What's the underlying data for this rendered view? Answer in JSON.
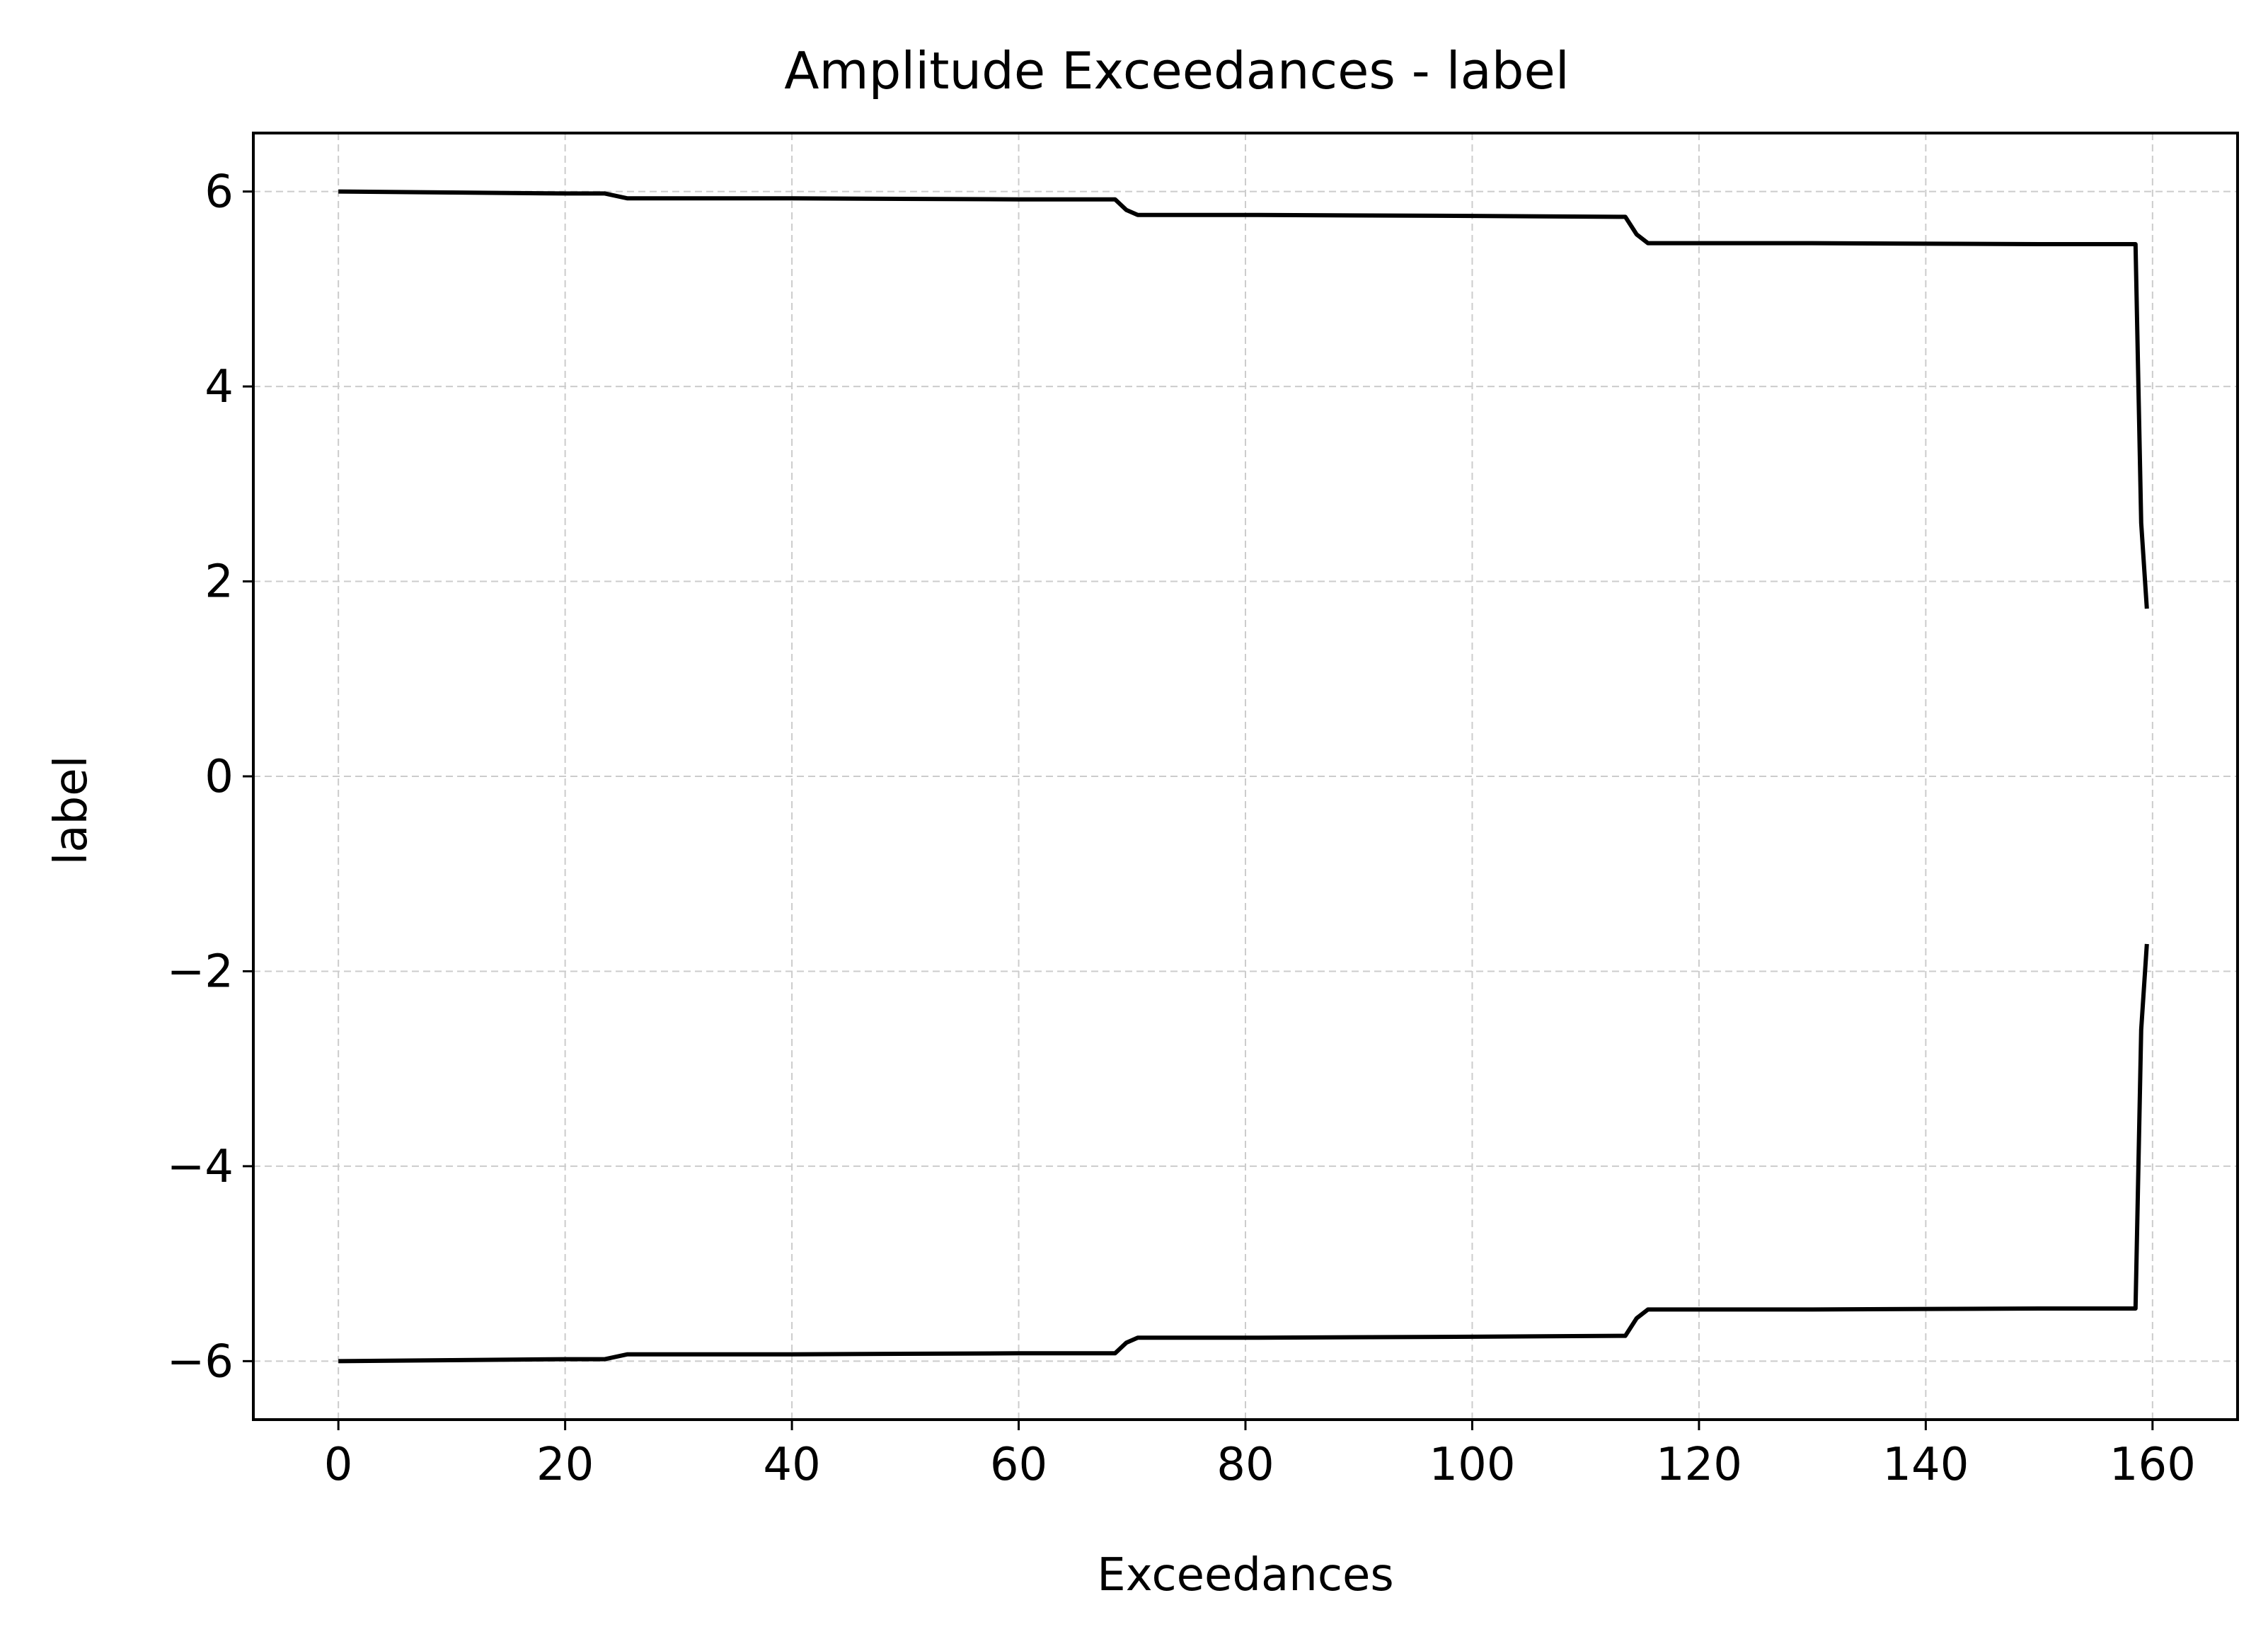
{
  "chart_data": {
    "type": "line",
    "title": "Amplitude Exceedances - label",
    "xlabel": "Exceedances",
    "ylabel": "label",
    "xlim": [
      -7.5,
      167.5
    ],
    "ylim": [
      -6.6,
      6.6
    ],
    "xticks": [
      0,
      20,
      40,
      60,
      80,
      100,
      120,
      140,
      160
    ],
    "xtick_labels": [
      "0",
      "20",
      "40",
      "60",
      "80",
      "100",
      "120",
      "140",
      "160"
    ],
    "yticks": [
      6,
      4,
      2,
      0,
      -2,
      -4,
      -6
    ],
    "ytick_labels": [
      "6",
      "4",
      "2",
      "0",
      "−2",
      "−4",
      "−6"
    ],
    "grid": true,
    "legend": "none",
    "series": [
      {
        "color": "#000000",
        "x": [
          0,
          10,
          20,
          23.5,
          25.5,
          40,
          60,
          68.5,
          69.5,
          70.5,
          80,
          100,
          113.5,
          114.5,
          115.5,
          130,
          150,
          158.5,
          159,
          159.5
        ],
        "y": [
          6.0,
          5.99,
          5.98,
          5.98,
          5.93,
          5.93,
          5.92,
          5.92,
          5.81,
          5.76,
          5.76,
          5.75,
          5.74,
          5.56,
          5.47,
          5.47,
          5.46,
          5.46,
          2.6,
          1.72
        ]
      },
      {
        "color": "#000000",
        "x": [
          0,
          10,
          20,
          23.5,
          25.5,
          40,
          60,
          68.5,
          69.5,
          70.5,
          80,
          100,
          113.5,
          114.5,
          115.5,
          130,
          150,
          158.5,
          159,
          159.5
        ],
        "y": [
          -6.0,
          -5.99,
          -5.98,
          -5.98,
          -5.93,
          -5.93,
          -5.92,
          -5.92,
          -5.81,
          -5.76,
          -5.76,
          -5.75,
          -5.74,
          -5.56,
          -5.47,
          -5.47,
          -5.46,
          -5.46,
          -2.6,
          -1.72
        ]
      }
    ]
  }
}
